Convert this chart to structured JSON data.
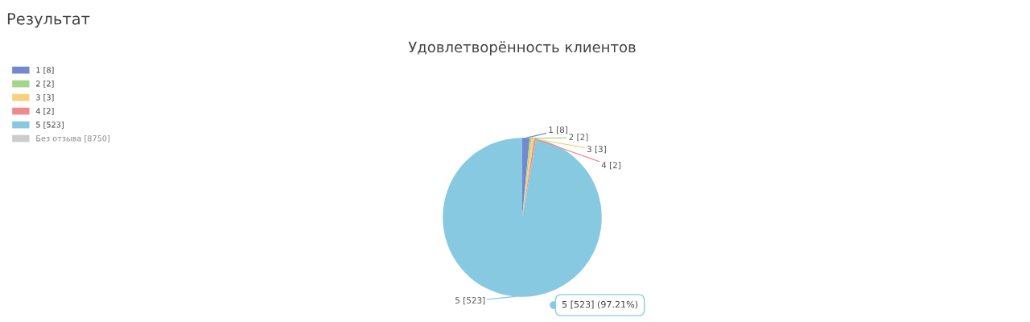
{
  "chart_data": {
    "type": "pie",
    "title": "Удовлетворённость клиентов",
    "subtitle": "Результат",
    "categories": [
      "1 [8]",
      "2 [2]",
      "3 [3]",
      "4 [2]",
      "5 [523]"
    ],
    "values": [
      8,
      2,
      3,
      2,
      523
    ],
    "colors": [
      "#7289d0",
      "#a3d68c",
      "#f8d27a",
      "#f18a8a",
      "#88c9e2"
    ],
    "legend": "top left",
    "annotations": [
      "Без отзыва [8750]",
      "5 [523] (97.21%)"
    ]
  }
}
